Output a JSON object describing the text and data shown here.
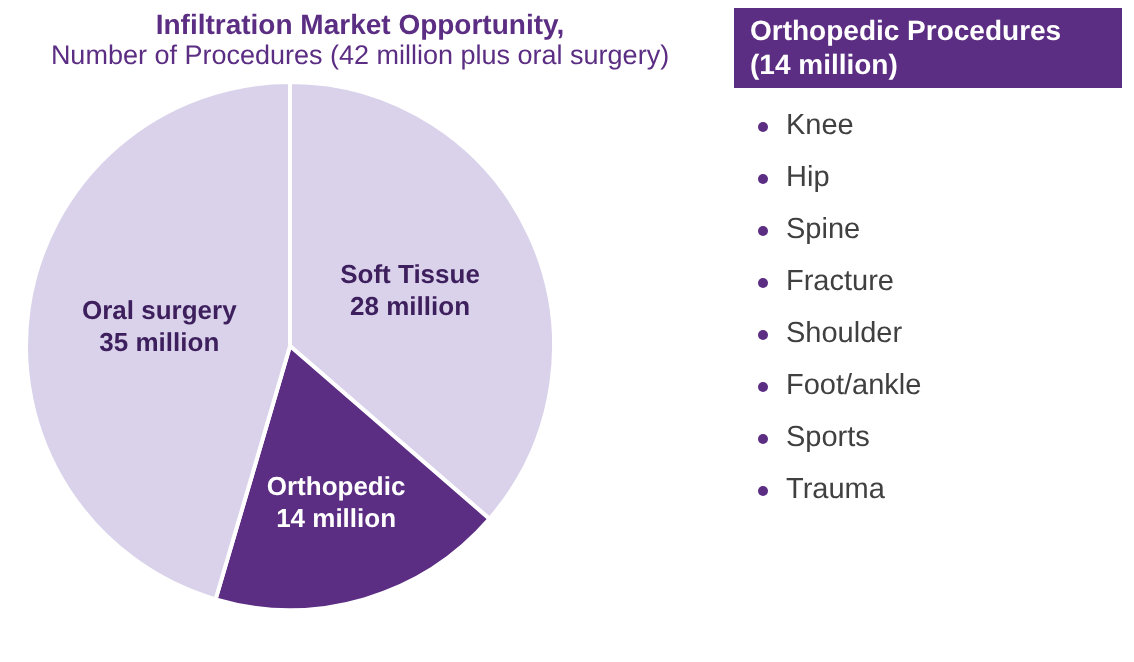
{
  "chart_data": [
    {
      "type": "pie",
      "title": "Infiltration Market Opportunity,",
      "subtitle": "Number of Procedures (42 million plus oral surgery)",
      "categories": [
        "Soft Tissue",
        "Orthopedic",
        "Oral surgery"
      ],
      "values": [
        28,
        14,
        35
      ],
      "colors": [
        "#d9d2ea",
        "#5b2d83",
        "#d9d2ea"
      ],
      "value_labels": [
        "28 million",
        "14 million",
        "35 million"
      ],
      "legend": false
    },
    {
      "type": "other",
      "title": "Orthopedic Procedures (14 million)",
      "annotations": [
        "Knee",
        "Hip",
        "Spine",
        "Fracture",
        "Shoulder",
        "Foot/ankle",
        "Sports",
        "Trauma"
      ]
    }
  ]
}
